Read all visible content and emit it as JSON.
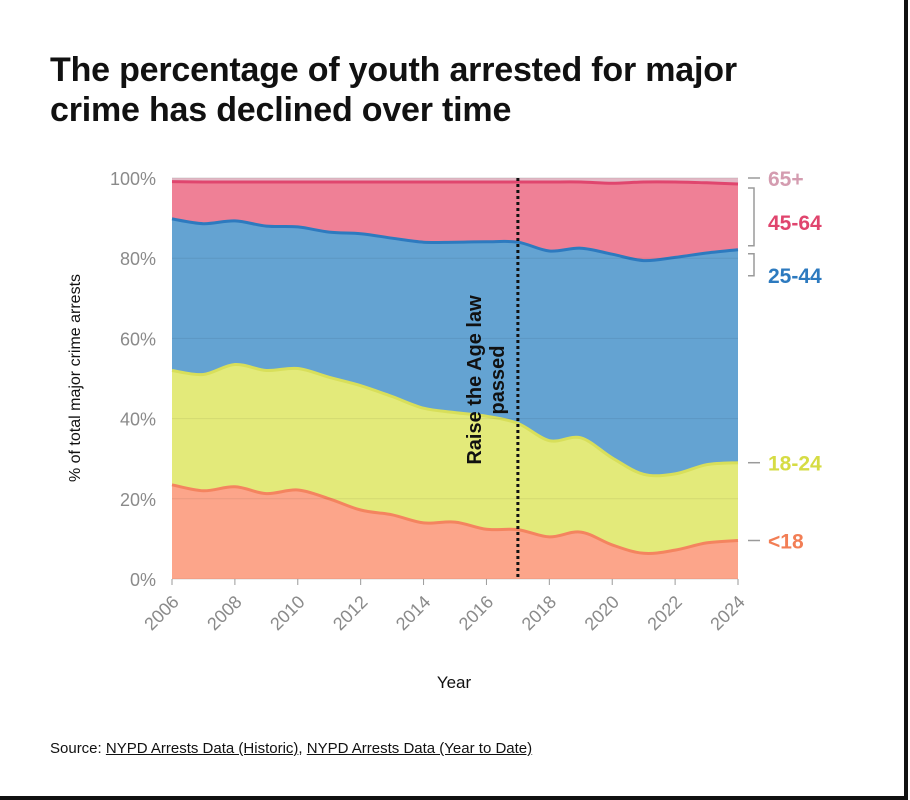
{
  "title": "The percentage of youth arrested for major crime has declined over time",
  "source": {
    "prefix": "Source: ",
    "link1": "NYPD Arrests Data (Historic)",
    "separator": ", ",
    "link2": "NYPD Arrests Data (Year to Date)"
  },
  "chart_data": {
    "type": "area",
    "stacked": true,
    "title": "The percentage of youth arrested for major crime has declined over time",
    "xlabel": "Year",
    "ylabel": "% of total major crime arrests",
    "x": [
      2006,
      2007,
      2008,
      2009,
      2010,
      2011,
      2012,
      2013,
      2014,
      2015,
      2016,
      2017,
      2018,
      2019,
      2020,
      2021,
      2022,
      2023,
      2024
    ],
    "xticks": [
      "2006",
      "2008",
      "2010",
      "2012",
      "2014",
      "2016",
      "2018",
      "2020",
      "2022",
      "2024"
    ],
    "yticks": [
      "0%",
      "20%",
      "40%",
      "60%",
      "80%",
      "100%"
    ],
    "ylim": [
      0,
      100
    ],
    "series": [
      {
        "name": "<18",
        "color": "#f4845f",
        "fill": "#fca58a",
        "values": [
          23.5,
          22.0,
          23.0,
          21.3,
          22.2,
          20.0,
          17.2,
          16.0,
          14.0,
          14.2,
          12.4,
          12.3,
          10.5,
          11.7,
          8.5,
          6.4,
          7.2,
          9.0,
          9.6
        ]
      },
      {
        "name": "18-24",
        "color": "#d8df5a",
        "fill": "#e3ea7a",
        "values": [
          28.5,
          29.0,
          30.5,
          30.7,
          30.3,
          30.3,
          31.0,
          29.5,
          28.6,
          27.3,
          28.2,
          26.5,
          24.0,
          23.5,
          21.7,
          19.7,
          19.0,
          19.5,
          19.4
        ]
      },
      {
        "name": "25-44",
        "color": "#2d7abf",
        "fill": "#64a3d2",
        "values": [
          37.8,
          37.6,
          35.8,
          36.0,
          35.3,
          36.2,
          37.9,
          39.5,
          41.4,
          42.5,
          43.5,
          45.2,
          47.3,
          47.3,
          50.8,
          53.3,
          54.0,
          52.8,
          53.1
        ]
      },
      {
        "name": "45-64",
        "color": "#e0466e",
        "fill": "#ef8096",
        "values": [
          9.3,
          10.4,
          9.7,
          11.0,
          11.2,
          12.5,
          12.9,
          14.0,
          15.0,
          15.0,
          14.9,
          15.0,
          17.2,
          16.5,
          17.7,
          19.6,
          18.8,
          17.5,
          16.4
        ]
      },
      {
        "name": "65+",
        "color": "#d8a9b8",
        "fill": "#e2b8c5",
        "values": [
          0.9,
          1.0,
          1.0,
          1.0,
          1.0,
          1.0,
          1.0,
          1.0,
          1.0,
          1.0,
          1.0,
          1.0,
          1.0,
          1.0,
          1.3,
          1.0,
          1.0,
          1.2,
          1.5
        ]
      }
    ],
    "legend": [
      {
        "label": "65+",
        "color": "#d49cb0"
      },
      {
        "label": "45-64",
        "color": "#e0456e"
      },
      {
        "label": "25-44",
        "color": "#2d7abf"
      },
      {
        "label": "18-24",
        "color": "#d6dc44"
      },
      {
        "label": "<18",
        "color": "#f27e55"
      }
    ],
    "annotation": {
      "x": 2017,
      "line1": "Raise the Age law",
      "line2": "passed"
    }
  }
}
